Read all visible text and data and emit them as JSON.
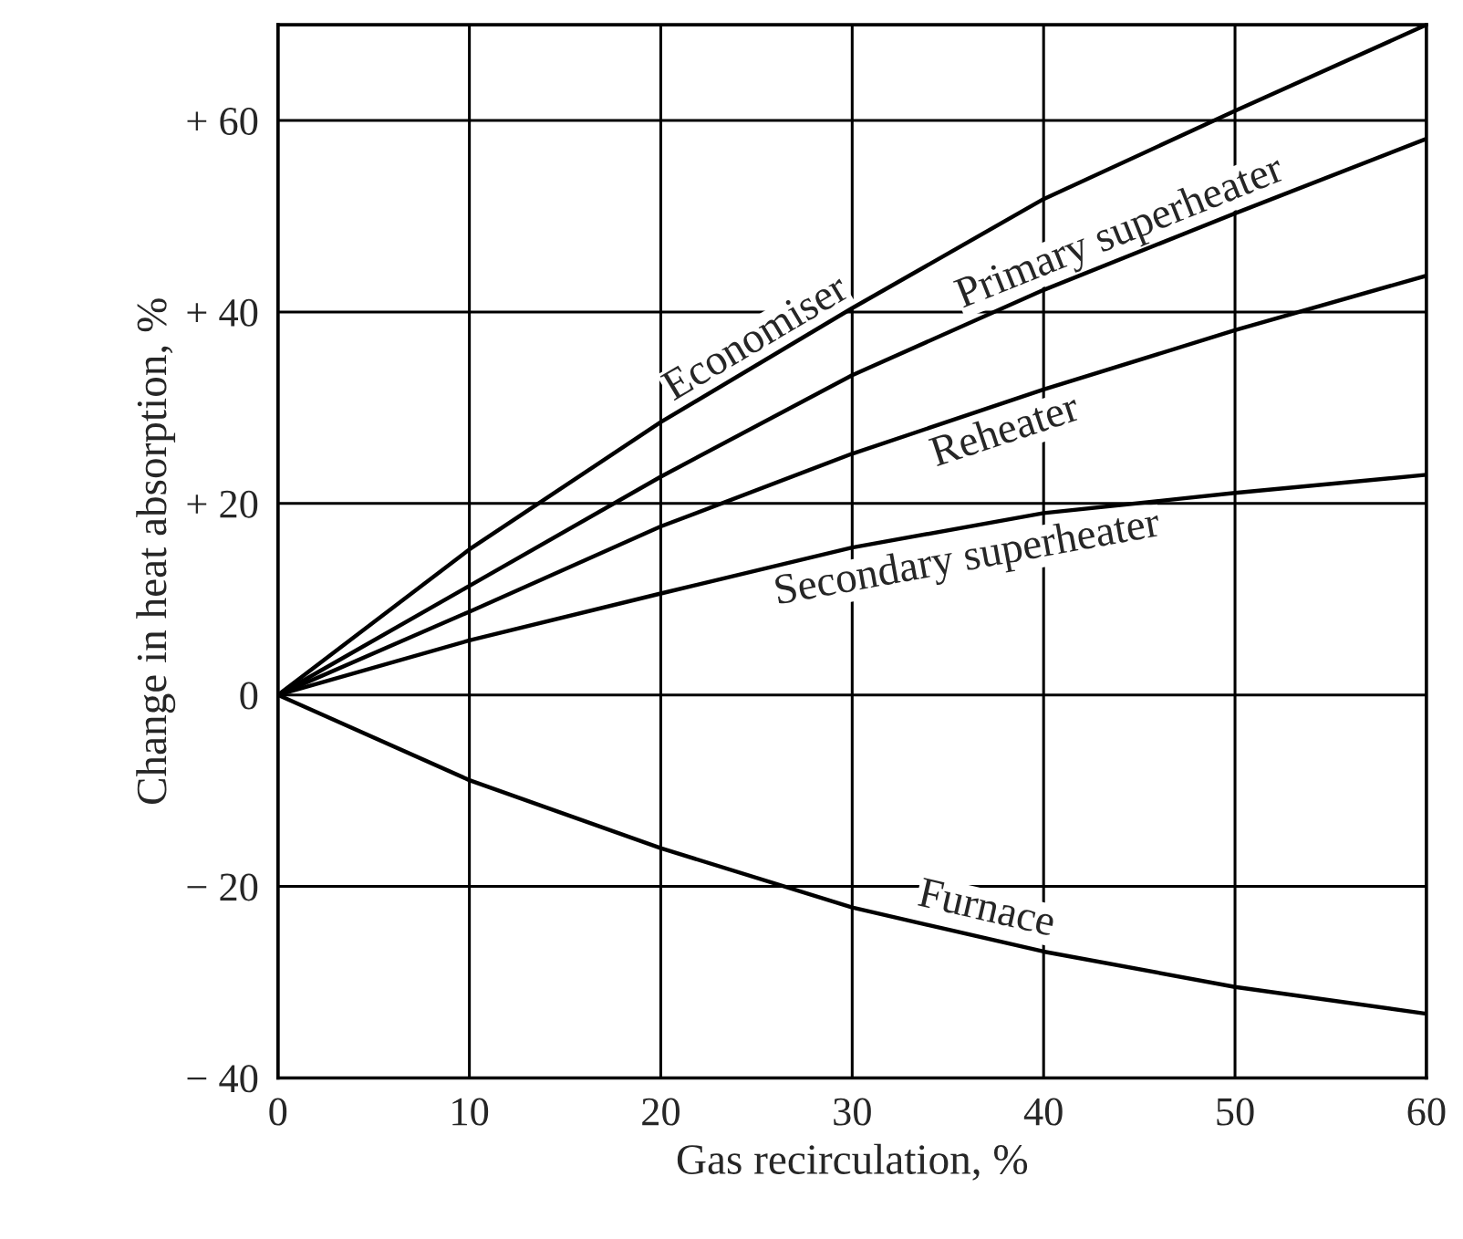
{
  "chart_data": {
    "type": "line",
    "xlabel": "Gas recirculation, %",
    "ylabel": "Change in heat absorption, %",
    "x": [
      0,
      10,
      20,
      30,
      40,
      50,
      60
    ],
    "series": [
      {
        "name": "Economiser",
        "color": "#000000",
        "values": [
          0,
          15.2,
          28.5,
          40.4,
          51.8,
          61,
          70
        ]
      },
      {
        "name": "Primary superheater",
        "color": "#000000",
        "values": [
          0,
          11.4,
          22.8,
          33.4,
          42.3,
          50.3,
          58.1
        ]
      },
      {
        "name": "Reheater",
        "color": "#000000",
        "values": [
          0,
          8.7,
          17.6,
          25.2,
          31.9,
          38.1,
          43.8
        ]
      },
      {
        "name": "Secondary superheater",
        "color": "#000000",
        "values": [
          0,
          5.7,
          10.6,
          15.4,
          19.0,
          21.1,
          23.0
        ]
      },
      {
        "name": "Furnace",
        "color": "#000000",
        "values": [
          0,
          -8.9,
          -16,
          -22.2,
          -26.8,
          -30.5,
          -33.3
        ]
      }
    ],
    "xlim": [
      0,
      60
    ],
    "ylim": [
      -40,
      70
    ],
    "xticks": [
      0,
      10,
      20,
      30,
      40,
      50,
      60
    ],
    "yticks": [
      {
        "value": -40,
        "label": "− 40"
      },
      {
        "value": -20,
        "label": "− 20"
      },
      0,
      {
        "value": 20,
        "label": "+ 20"
      },
      {
        "value": 40,
        "label": "+ 40"
      },
      {
        "value": 60,
        "label": "+ 60"
      }
    ],
    "grid": true,
    "legend": false,
    "marker": "none",
    "line_style": "solid"
  }
}
